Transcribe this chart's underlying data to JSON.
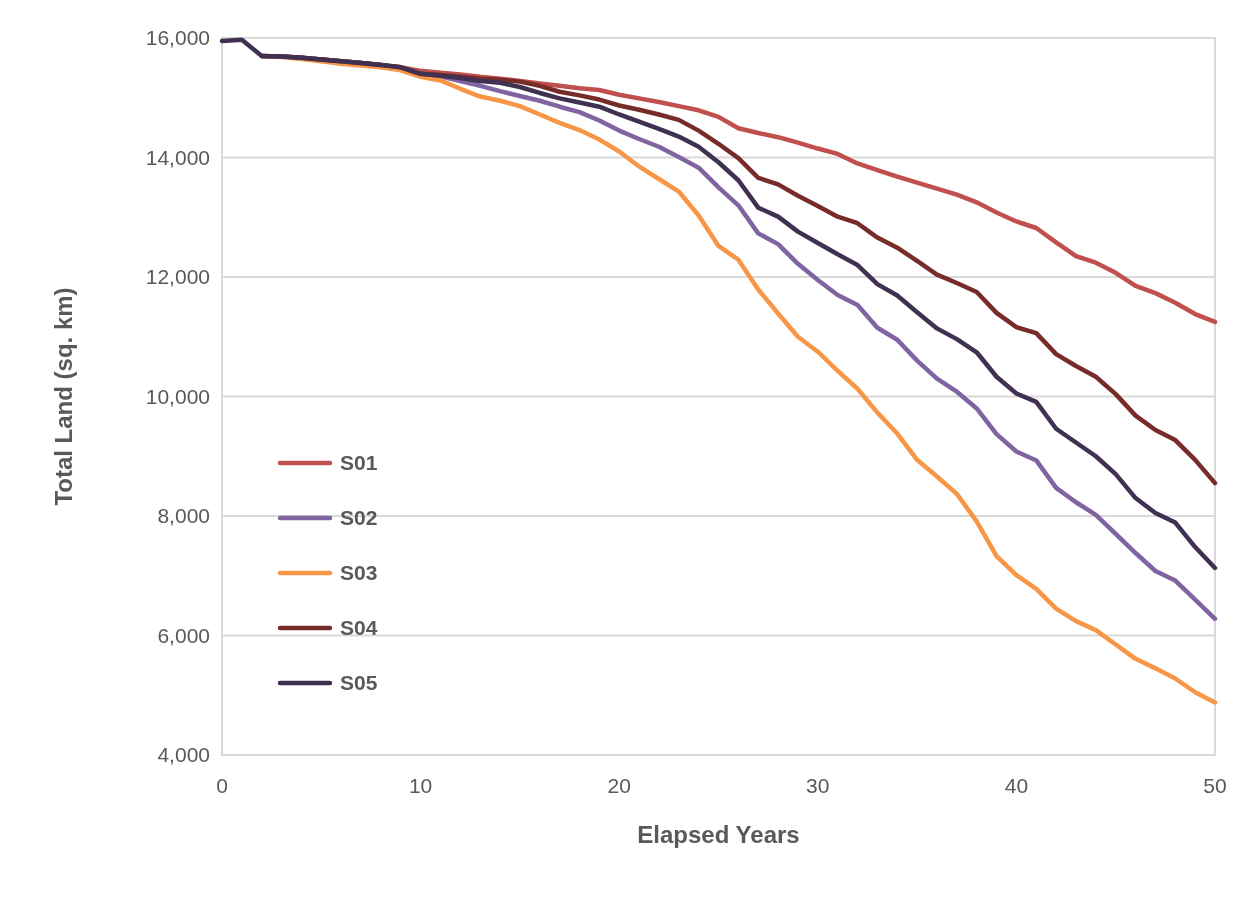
{
  "chart_data": {
    "type": "line",
    "xlabel": "Elapsed Years",
    "ylabel": "Total Land (sq. km)",
    "x": [
      0,
      1,
      2,
      3,
      4,
      5,
      6,
      7,
      8,
      9,
      10,
      11,
      12,
      13,
      14,
      15,
      16,
      17,
      18,
      19,
      20,
      21,
      22,
      23,
      24,
      25,
      26,
      27,
      28,
      29,
      30,
      31,
      32,
      33,
      34,
      35,
      36,
      37,
      38,
      39,
      40,
      41,
      42,
      43,
      44,
      45,
      46,
      47,
      48,
      49,
      50
    ],
    "series": [
      {
        "name": "S01",
        "color": "#c0504d",
        "values": [
          null,
          null,
          15700,
          15690,
          15670,
          15640,
          15610,
          15580,
          15550,
          15510,
          15450,
          15420,
          15390,
          15350,
          15320,
          15280,
          15240,
          15200,
          15160,
          15130,
          15050,
          14990,
          14930,
          14860,
          14790,
          14680,
          14490,
          14410,
          14340,
          14250,
          14150,
          14060,
          13900,
          13790,
          13680,
          13580,
          13480,
          13380,
          13250,
          13080,
          12930,
          12820,
          12580,
          12350,
          12240,
          12070,
          11850,
          11730,
          11570,
          11380,
          11250
        ]
      },
      {
        "name": "S02",
        "color": "#8064a2",
        "values": [
          null,
          null,
          15700,
          15690,
          15670,
          15640,
          15610,
          15580,
          15550,
          15500,
          15400,
          15360,
          15280,
          15200,
          15110,
          15030,
          14950,
          14850,
          14760,
          14620,
          14450,
          14310,
          14180,
          14010,
          13830,
          13500,
          13200,
          12730,
          12550,
          12220,
          11950,
          11700,
          11530,
          11150,
          10950,
          10600,
          10300,
          10080,
          9800,
          9370,
          9080,
          8930,
          8470,
          8230,
          8020,
          7700,
          7380,
          7080,
          6920,
          6600,
          6280
        ]
      },
      {
        "name": "S03",
        "color": "#f79646",
        "values": [
          null,
          null,
          15700,
          15680,
          15650,
          15610,
          15570,
          15540,
          15510,
          15460,
          15350,
          15290,
          15150,
          15020,
          14950,
          14860,
          14720,
          14580,
          14460,
          14300,
          14100,
          13850,
          13640,
          13430,
          13030,
          12520,
          12290,
          11790,
          11390,
          11000,
          10750,
          10430,
          10130,
          9730,
          9380,
          8940,
          8660,
          8370,
          7910,
          7330,
          7010,
          6780,
          6450,
          6240,
          6090,
          5850,
          5610,
          5450,
          5280,
          5050,
          4880
        ]
      },
      {
        "name": "S04",
        "color": "#772c2a",
        "values": [
          null,
          null,
          15700,
          15690,
          15670,
          15640,
          15610,
          15580,
          15550,
          15510,
          15400,
          15380,
          15350,
          15320,
          15300,
          15270,
          15200,
          15100,
          15040,
          14970,
          14870,
          14800,
          14720,
          14630,
          14450,
          14230,
          13990,
          13660,
          13550,
          13360,
          13190,
          13010,
          12900,
          12660,
          12490,
          12270,
          12040,
          11900,
          11750,
          11400,
          11160,
          11060,
          10710,
          10510,
          10330,
          10040,
          9680,
          9440,
          9270,
          8940,
          8550
        ]
      },
      {
        "name": "S05",
        "color": "#403152",
        "values": [
          15950,
          15970,
          15700,
          15690,
          15670,
          15640,
          15610,
          15580,
          15550,
          15510,
          15400,
          15370,
          15330,
          15280,
          15250,
          15180,
          15080,
          14990,
          14920,
          14850,
          14720,
          14600,
          14480,
          14350,
          14180,
          13920,
          13620,
          13160,
          13010,
          12760,
          12570,
          12380,
          12200,
          11880,
          11690,
          11410,
          11140,
          10960,
          10740,
          10330,
          10050,
          9910,
          9460,
          9230,
          9000,
          8700,
          8300,
          8050,
          7890,
          7480,
          7130
        ]
      }
    ],
    "xlim": [
      0,
      50
    ],
    "xticks": [
      0,
      10,
      20,
      30,
      40,
      50
    ],
    "ylim": [
      4000,
      16000
    ],
    "yticks": [
      {
        "value": 4000,
        "label": "4,000"
      },
      {
        "value": 6000,
        "label": "6,000"
      },
      {
        "value": 8000,
        "label": "8,000"
      },
      {
        "value": 10000,
        "label": "10,000"
      },
      {
        "value": 12000,
        "label": "12,000"
      },
      {
        "value": 14000,
        "label": "14,000"
      },
      {
        "value": 16000,
        "label": "16,000"
      }
    ],
    "grid": "y",
    "legend": "left",
    "marker": "none",
    "line_style": "solid"
  }
}
